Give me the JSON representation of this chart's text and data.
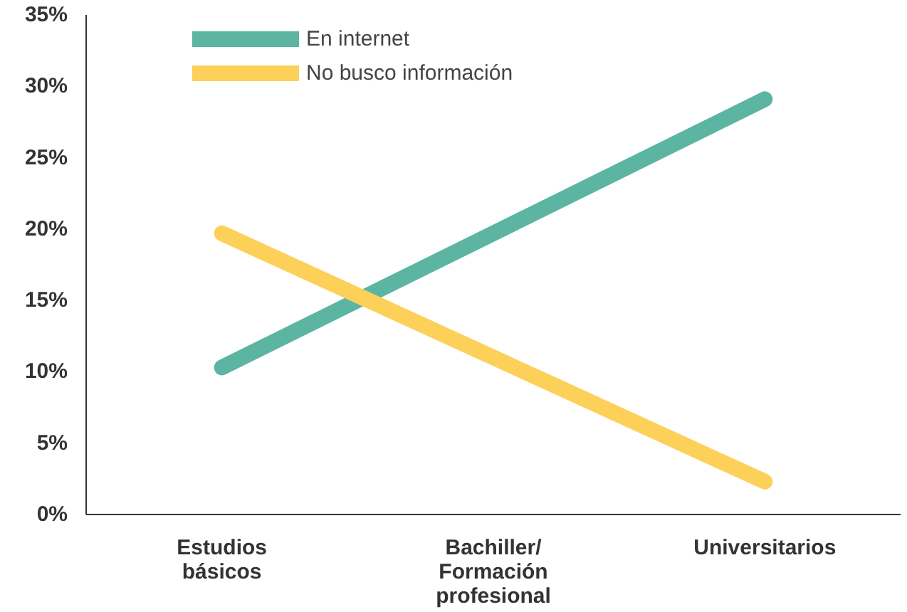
{
  "chart_data": {
    "type": "line",
    "categories": [
      "Estudios\nbásicos",
      "Bachiller/\nFormación\nprofesional",
      "Universitarios"
    ],
    "series": [
      {
        "name": "En internet",
        "color": "#5bb5a2",
        "values": [
          10.3,
          19.7,
          29.1
        ]
      },
      {
        "name": "No busco información",
        "color": "#fdd05a",
        "values": [
          19.7,
          11.0,
          2.3
        ]
      }
    ],
    "ylim": [
      0,
      35
    ],
    "yticks": [
      {
        "value": 0,
        "label": "0%"
      },
      {
        "value": 5,
        "label": "5%"
      },
      {
        "value": 10,
        "label": "10%"
      },
      {
        "value": 15,
        "label": "15%"
      },
      {
        "value": 20,
        "label": "20%"
      },
      {
        "value": 25,
        "label": "25%"
      },
      {
        "value": 30,
        "label": "30%"
      },
      {
        "value": 35,
        "label": "35%"
      }
    ],
    "grid": false,
    "legend": "top",
    "marker": "none",
    "line_style": "solid"
  }
}
